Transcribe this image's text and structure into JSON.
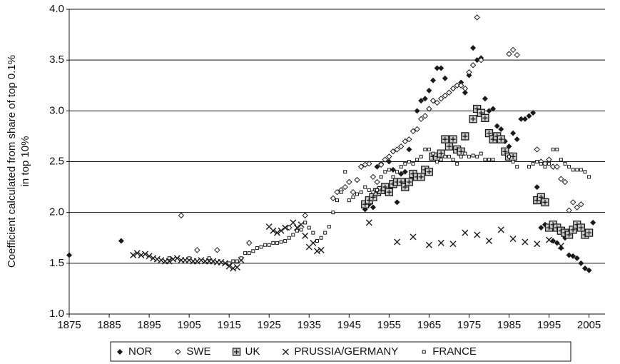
{
  "chart_data": {
    "type": "scatter",
    "y_label": [
      "Coefficient calculated from share of top 0.1%",
      "in top 10%"
    ],
    "xlim": [
      1875,
      2009
    ],
    "ylim": [
      1,
      4
    ],
    "xticks": [
      1875,
      1885,
      1895,
      1905,
      1915,
      1925,
      1935,
      1945,
      1955,
      1965,
      1975,
      1985,
      1995,
      2005
    ],
    "yticks": [
      {
        "value": 1,
        "label": "1.0"
      },
      1.5,
      {
        "value": 2,
        "label": "2.0"
      },
      2.5,
      {
        "value": 3,
        "label": "3.0"
      },
      3.5,
      {
        "value": 4,
        "label": "4.0"
      }
    ],
    "grid": true,
    "legend": "bottom",
    "series": [
      {
        "name": "NOR",
        "color": "#1a1a1a",
        "marker": "diamond",
        "x": [
          1875,
          1888,
          1949,
          1950,
          1951,
          1952,
          1953,
          1954,
          1955,
          1956,
          1957,
          1958,
          1959,
          1960,
          1961,
          1962,
          1963,
          1964,
          1965,
          1966,
          1967,
          1968,
          1969,
          1970,
          1971,
          1972,
          1973,
          1974,
          1975,
          1976,
          1977,
          1978,
          1979,
          1980,
          1981,
          1982,
          1983,
          1984,
          1985,
          1986,
          1987,
          1988,
          1989,
          1990,
          1991,
          1992,
          1993,
          1994,
          1995,
          1996,
          1997,
          1998,
          1999,
          2000,
          2001,
          2002,
          2003,
          2004,
          2005,
          2006
        ],
        "values": [
          1.58,
          1.72,
          2.03,
          2.08,
          2.05,
          2.45,
          2.48,
          2.52,
          2.5,
          2.42,
          2.1,
          2.38,
          2.4,
          2.62,
          2.8,
          3.0,
          3.1,
          3.12,
          3.2,
          3.3,
          3.42,
          3.42,
          3.32,
          3.18,
          3.22,
          3.25,
          3.28,
          3.18,
          3.35,
          3.62,
          3.5,
          3.52,
          3.12,
          3.0,
          3.02,
          2.85,
          2.82,
          2.7,
          2.65,
          2.78,
          2.72,
          2.92,
          2.92,
          2.95,
          2.98,
          2.25,
          1.85,
          1.88,
          1.85,
          1.72,
          1.7,
          1.65,
          1.75,
          1.58,
          1.57,
          1.55,
          1.5,
          1.45,
          1.43,
          1.9
        ]
      },
      {
        "name": "SWE",
        "color": "#1a1a1a",
        "marker": "diamond-open",
        "x": [
          1903,
          1907,
          1912,
          1920,
          1930,
          1934,
          1941,
          1942,
          1943,
          1944,
          1945,
          1946,
          1947,
          1948,
          1949,
          1950,
          1951,
          1952,
          1953,
          1954,
          1955,
          1956,
          1957,
          1958,
          1959,
          1960,
          1961,
          1962,
          1963,
          1964,
          1965,
          1966,
          1967,
          1968,
          1969,
          1970,
          1971,
          1972,
          1973,
          1974,
          1975,
          1976,
          1977,
          1978,
          1985,
          1986,
          1987,
          1992,
          1993,
          1994,
          1995,
          1996,
          1997,
          1998,
          1999,
          2000,
          2001,
          2002,
          2003
        ],
        "values": [
          1.97,
          1.63,
          1.63,
          1.7,
          1.85,
          1.97,
          2.14,
          2.2,
          2.22,
          2.25,
          2.3,
          2.2,
          2.32,
          2.45,
          2.47,
          2.48,
          2.35,
          2.3,
          2.47,
          2.52,
          2.55,
          2.6,
          2.62,
          2.65,
          2.7,
          2.72,
          2.8,
          2.82,
          2.92,
          2.95,
          3.02,
          3.1,
          3.08,
          3.12,
          3.15,
          3.18,
          3.22,
          3.25,
          3.25,
          3.22,
          3.38,
          3.45,
          3.92,
          3.5,
          3.56,
          3.6,
          3.55,
          2.62,
          2.5,
          2.48,
          2.52,
          2.45,
          2.45,
          2.33,
          2.3,
          2.02,
          2.1,
          2.05,
          2.08
        ]
      },
      {
        "name": "UK",
        "color": "#1a1a1a",
        "marker": "plus",
        "x": [
          1949,
          1950,
          1951,
          1952,
          1953,
          1954,
          1955,
          1956,
          1957,
          1958,
          1959,
          1960,
          1961,
          1962,
          1963,
          1964,
          1965,
          1966,
          1967,
          1968,
          1969,
          1970,
          1971,
          1972,
          1973,
          1974,
          1976,
          1977,
          1978,
          1979,
          1980,
          1981,
          1982,
          1983,
          1984,
          1985,
          1986,
          1992,
          1993,
          1994,
          1995,
          1996,
          1997,
          1998,
          1999,
          2000,
          2001,
          2002,
          2003,
          2004,
          2005
        ],
        "values": [
          2.08,
          2.12,
          2.15,
          2.2,
          2.22,
          2.25,
          2.2,
          2.28,
          2.3,
          2.3,
          2.25,
          2.3,
          2.38,
          2.35,
          2.35,
          2.42,
          2.4,
          2.55,
          2.55,
          2.58,
          2.72,
          2.65,
          2.72,
          2.62,
          2.6,
          2.75,
          2.92,
          3.02,
          2.98,
          2.93,
          2.78,
          2.72,
          2.75,
          2.72,
          2.6,
          2.55,
          2.55,
          2.12,
          2.15,
          2.1,
          1.85,
          1.88,
          1.85,
          1.82,
          1.8,
          1.78,
          1.83,
          1.88,
          1.85,
          1.78,
          1.8
        ]
      },
      {
        "name": "PRUSSIA/GERMANY",
        "color": "#1a1a1a",
        "marker": "cross",
        "x": [
          1891,
          1892,
          1893,
          1894,
          1895,
          1896,
          1897,
          1898,
          1899,
          1900,
          1901,
          1902,
          1903,
          1904,
          1905,
          1906,
          1907,
          1908,
          1909,
          1910,
          1911,
          1912,
          1913,
          1914,
          1915,
          1916,
          1917,
          1918,
          1925,
          1926,
          1927,
          1928,
          1929,
          1931,
          1932,
          1933,
          1934,
          1935,
          1936,
          1937,
          1938,
          1950,
          1957,
          1961,
          1965,
          1968,
          1971,
          1974,
          1977,
          1980,
          1983,
          1986,
          1989,
          1992,
          1995,
          1998
        ],
        "values": [
          1.58,
          1.6,
          1.58,
          1.59,
          1.57,
          1.55,
          1.54,
          1.53,
          1.52,
          1.52,
          1.54,
          1.55,
          1.53,
          1.53,
          1.53,
          1.52,
          1.52,
          1.53,
          1.52,
          1.52,
          1.52,
          1.51,
          1.51,
          1.5,
          1.47,
          1.45,
          1.46,
          1.53,
          1.86,
          1.82,
          1.8,
          1.82,
          1.85,
          1.9,
          1.85,
          1.88,
          1.77,
          1.66,
          1.7,
          1.62,
          1.63,
          1.9,
          1.71,
          1.76,
          1.68,
          1.7,
          1.69,
          1.8,
          1.78,
          1.72,
          1.83,
          1.74,
          1.71,
          1.69,
          1.73,
          1.67
        ]
      },
      {
        "name": "FRANCE",
        "color": "#1a1a1a",
        "marker": "square",
        "x": [
          1900,
          1905,
          1910,
          1915,
          1916,
          1917,
          1918,
          1919,
          1920,
          1921,
          1922,
          1923,
          1924,
          1925,
          1926,
          1927,
          1928,
          1929,
          1930,
          1931,
          1932,
          1933,
          1934,
          1935,
          1936,
          1937,
          1938,
          1939,
          1940,
          1941,
          1942,
          1943,
          1944,
          1945,
          1946,
          1947,
          1948,
          1949,
          1950,
          1951,
          1952,
          1953,
          1954,
          1955,
          1956,
          1957,
          1958,
          1959,
          1960,
          1961,
          1962,
          1963,
          1964,
          1965,
          1966,
          1967,
          1968,
          1969,
          1970,
          1971,
          1972,
          1973,
          1974,
          1975,
          1976,
          1977,
          1978,
          1979,
          1980,
          1981,
          1985,
          1986,
          1987,
          1990,
          1991,
          1992,
          1993,
          1994,
          1995,
          1996,
          1997,
          1998,
          1999,
          2000,
          2001,
          2002,
          2003,
          2004,
          2005
        ],
        "values": [
          1.55,
          1.55,
          1.55,
          1.5,
          1.52,
          1.52,
          1.55,
          1.6,
          1.6,
          1.62,
          1.65,
          1.66,
          1.68,
          1.68,
          1.7,
          1.7,
          1.71,
          1.72,
          1.75,
          1.78,
          1.82,
          1.83,
          1.9,
          1.85,
          1.8,
          1.72,
          1.75,
          1.8,
          1.86,
          2.0,
          2.12,
          2.2,
          2.4,
          2.12,
          2.15,
          2.18,
          2.2,
          2.25,
          2.22,
          2.2,
          2.22,
          2.35,
          2.4,
          2.42,
          2.35,
          2.4,
          2.45,
          2.48,
          2.5,
          2.48,
          2.52,
          2.55,
          2.62,
          2.62,
          2.58,
          2.5,
          2.52,
          2.55,
          2.55,
          2.52,
          2.48,
          2.55,
          2.58,
          2.55,
          2.56,
          2.55,
          2.58,
          2.52,
          2.52,
          2.52,
          2.55,
          2.5,
          2.45,
          2.45,
          2.48,
          2.5,
          2.48,
          2.45,
          2.48,
          2.62,
          2.62,
          2.52,
          2.48,
          2.45,
          2.42,
          2.42,
          2.42,
          2.4,
          2.35
        ]
      }
    ]
  }
}
